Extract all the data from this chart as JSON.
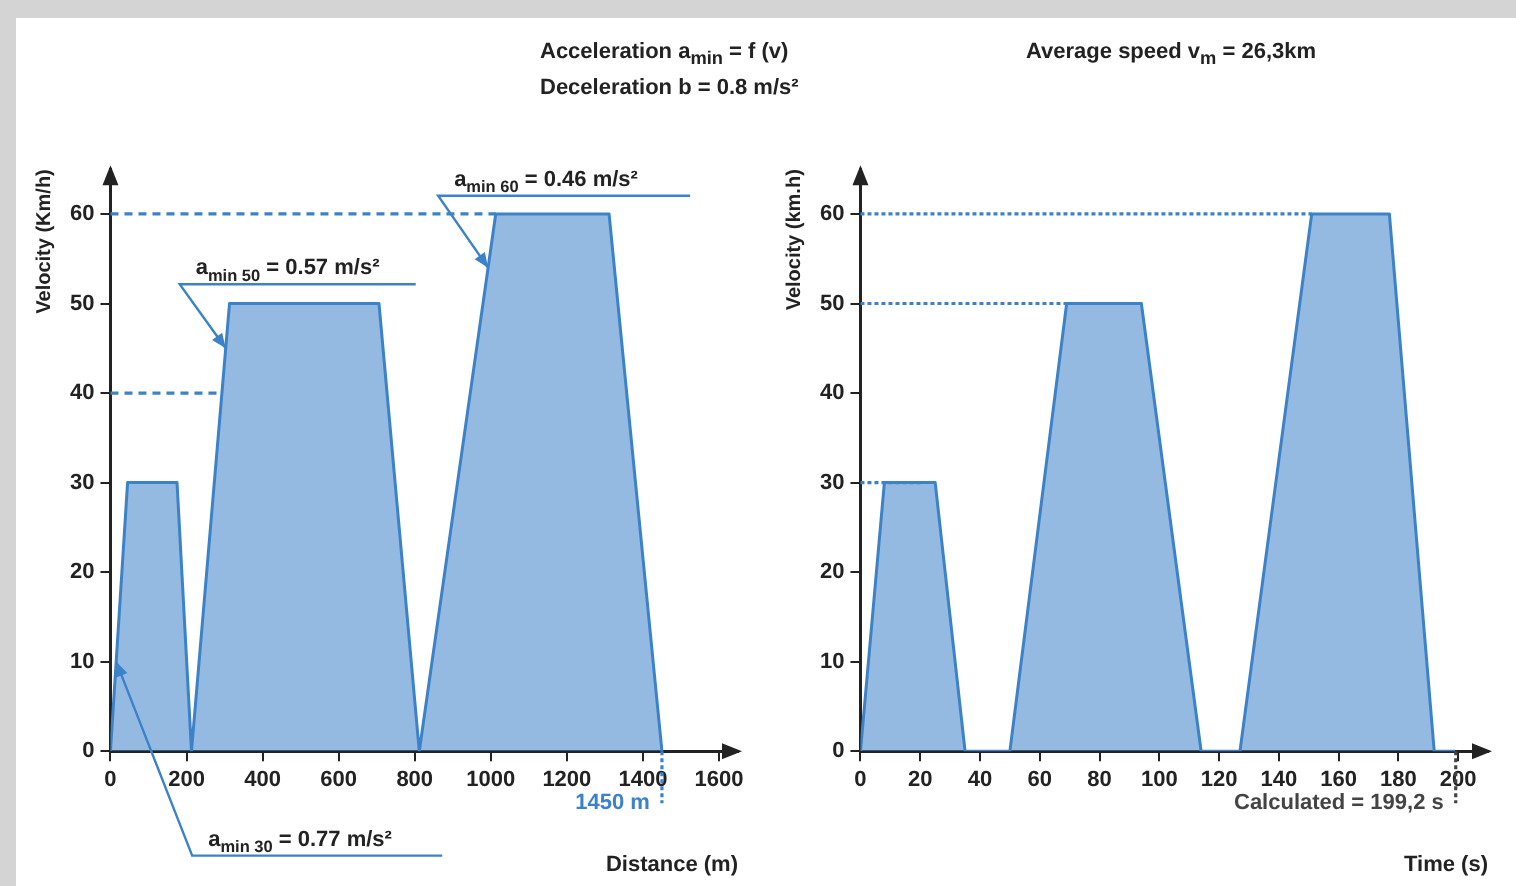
{
  "chart_data": [
    {
      "type": "area",
      "xlabel": "Distance (m)",
      "ylabel": "Velocity (Km/h)",
      "x": [
        0,
        45,
        175,
        213,
        313,
        706,
        812,
        1013,
        1311,
        1450
      ],
      "series": [
        {
          "color": "#3c82c8",
          "values": [
            0,
            30,
            30,
            0,
            50,
            50,
            0,
            60,
            60,
            0
          ]
        }
      ],
      "xlim": [
        0,
        1650
      ],
      "xticks": [
        0,
        200,
        400,
        600,
        800,
        1000,
        1200,
        1400,
        1600
      ],
      "ylim": [
        0,
        65
      ],
      "yticks": [
        0,
        10,
        20,
        30,
        40,
        50,
        60
      ],
      "grid": false,
      "legend": false,
      "ref_lines": [
        {
          "axis": "y",
          "value": 60,
          "color": "#3c82c8",
          "line_style": "dashed"
        },
        {
          "axis": "y",
          "value": 40,
          "color": "#3c82c8",
          "line_style": "dashed"
        },
        {
          "axis": "x",
          "value": 1450,
          "label": "1450 m",
          "color": "#3c82c8",
          "line_style": "dotted"
        }
      ],
      "annotations": [
        "Acceleration a$_{min}$ = f (v)",
        "Deceleration b = 0.8 m/s²",
        {
          "text": "a$_{min 30}$ = 0.77 m/s²",
          "x": 15,
          "y": 10
        },
        {
          "text": "a$_{min 50}$ = 0.57 m/s²",
          "x": 303,
          "y": 45
        },
        {
          "text": "a$_{min 60}$ = 0.46 m/s²",
          "x": 993,
          "y": 54
        }
      ]
    },
    {
      "type": "area",
      "xlabel": "Time (s)",
      "ylabel": "Velocity (km.h)",
      "x": [
        0,
        8,
        25,
        35,
        50,
        69,
        94,
        114,
        127,
        151,
        177,
        192,
        199
      ],
      "series": [
        {
          "color": "#3c82c8",
          "values": [
            0,
            30,
            30,
            0,
            0,
            50,
            50,
            0,
            0,
            60,
            60,
            0,
            0
          ]
        }
      ],
      "xlim": [
        0,
        210
      ],
      "xticks": [
        0,
        20,
        40,
        60,
        80,
        100,
        120,
        140,
        160,
        180,
        200
      ],
      "ylim": [
        0,
        65
      ],
      "yticks": [
        0,
        10,
        20,
        30,
        40,
        50,
        60
      ],
      "grid": false,
      "legend": false,
      "ref_lines": [
        {
          "axis": "y",
          "value": 60,
          "color": "#3c82c8",
          "line_style": "dotted"
        },
        {
          "axis": "y",
          "value": 50,
          "color": "#3c82c8",
          "line_style": "dotted"
        },
        {
          "axis": "y",
          "value": 30,
          "color": "#3c82c8",
          "line_style": "dotted"
        },
        {
          "axis": "x",
          "value": 199.2,
          "label": "Calculated = 199,2 s",
          "color": "#444444",
          "line_style": "dotted"
        }
      ],
      "annotations": [
        "Average speed v$_{m}$ = 26,3km"
      ]
    }
  ]
}
